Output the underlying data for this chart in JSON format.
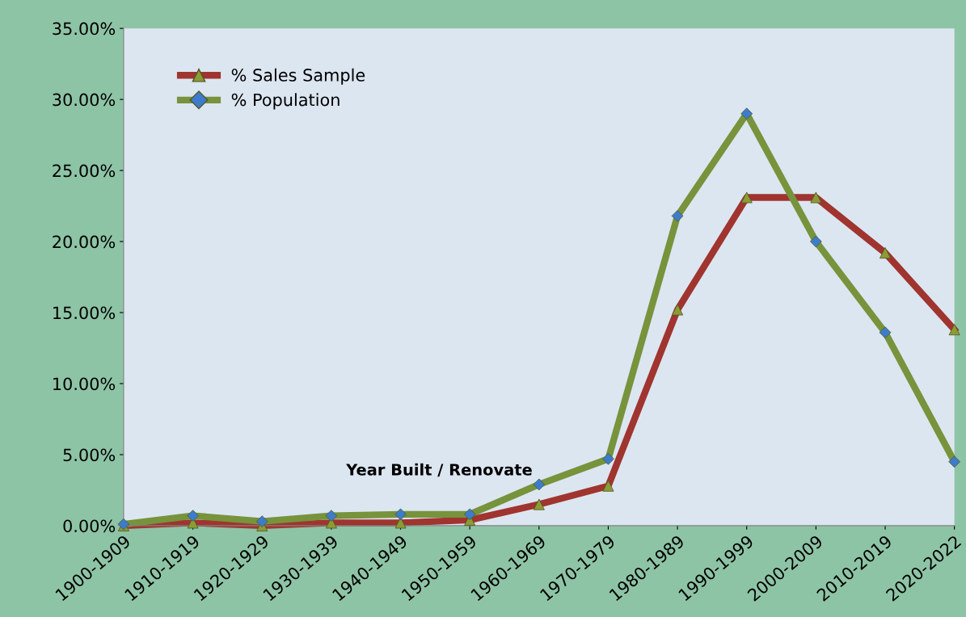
{
  "chart_data": {
    "type": "line",
    "xlabel": "Year Built / Renovate",
    "categories": [
      "1900-1909",
      "1910-1919",
      "1920-1929",
      "1930-1939",
      "1940-1949",
      "1950-1959",
      "1960-1969",
      "1970-1979",
      "1980-1989",
      "1990-1999",
      "2000-2009",
      "2010-2019",
      "2020-2022"
    ],
    "series": [
      {
        "name": "% Sales Sample",
        "color": "#a0342f",
        "marker": "triangle",
        "colors": [
          "#8c9c34",
          "#8c9c34",
          "#8c9c34",
          "#8c9c34",
          "#8c9c34",
          "#8c9c34",
          "#8c9c34",
          "#8c9c34",
          "#8c9c34",
          "#8c9c34",
          "#8c9c34",
          "#8c9c34",
          "#8c9c34"
        ],
        "values": [
          0.0,
          0.2,
          0.0,
          0.2,
          0.2,
          0.4,
          1.5,
          2.8,
          15.2,
          23.1,
          23.1,
          19.2,
          13.8
        ]
      },
      {
        "name": "% Population",
        "color": "#77933c",
        "marker": "diamond",
        "colors": [
          "#3d7ccc",
          "#3d7ccc",
          "#3d7ccc",
          "#3d7ccc",
          "#3d7ccc",
          "#3d7ccc",
          "#3d7ccc",
          "#3d7ccc",
          "#3d7ccc",
          "#3d7ccc",
          "#3d7ccc",
          "#3d7ccc",
          "#3d7ccc"
        ],
        "values": [
          0.1,
          0.7,
          0.3,
          0.7,
          0.8,
          0.8,
          2.9,
          4.7,
          21.8,
          29.0,
          20.0,
          13.6,
          4.5
        ]
      }
    ],
    "ylim": [
      0,
      35
    ],
    "yticks": [
      {
        "value": 0,
        "label": "0.00%"
      },
      {
        "value": 5,
        "label": "5.00%"
      },
      {
        "value": 10,
        "label": "10.00%"
      },
      {
        "value": 15,
        "label": "15.00%"
      },
      {
        "value": 20,
        "label": "20.00%"
      },
      {
        "value": 25,
        "label": "25.00%"
      },
      {
        "value": 30,
        "label": "30.00%"
      },
      {
        "value": 35,
        "label": "35.00%"
      }
    ],
    "legend": "top left",
    "grid": false
  }
}
